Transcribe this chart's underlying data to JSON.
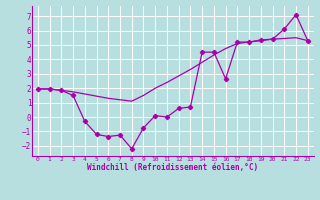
{
  "title": "",
  "xlabel": "Windchill (Refroidissement éolien,°C)",
  "ylabel": "",
  "xlim": [
    -0.5,
    23.5
  ],
  "ylim": [
    -2.7,
    7.7
  ],
  "yticks": [
    -2,
    -1,
    0,
    1,
    2,
    3,
    4,
    5,
    6,
    7
  ],
  "xticks": [
    0,
    1,
    2,
    3,
    4,
    5,
    6,
    7,
    8,
    9,
    10,
    11,
    12,
    13,
    14,
    15,
    16,
    17,
    18,
    19,
    20,
    21,
    22,
    23
  ],
  "bg_color": "#b8dfe0",
  "line_color": "#aa00aa",
  "grid_color": "#ffffff",
  "line1_x": [
    0,
    1,
    2,
    3,
    4,
    5,
    6,
    7,
    8,
    9,
    10,
    11,
    12,
    13,
    14,
    15,
    16,
    17,
    18,
    19,
    20,
    21,
    22,
    23
  ],
  "line1_y": [
    1.95,
    1.95,
    1.85,
    1.5,
    -0.3,
    -1.2,
    -1.35,
    -1.25,
    -2.2,
    -0.75,
    0.1,
    0.0,
    0.6,
    0.7,
    4.5,
    4.5,
    2.65,
    5.2,
    5.2,
    5.35,
    5.4,
    6.1,
    7.1,
    5.3
  ],
  "line2_x": [
    0,
    1,
    2,
    3,
    4,
    5,
    6,
    7,
    8,
    9,
    10,
    11,
    12,
    13,
    14,
    15,
    16,
    17,
    18,
    19,
    20,
    21,
    22,
    23
  ],
  "line2_y": [
    1.95,
    1.95,
    1.85,
    1.75,
    1.6,
    1.45,
    1.3,
    1.2,
    1.1,
    1.5,
    2.0,
    2.4,
    2.85,
    3.3,
    3.8,
    4.3,
    4.75,
    5.1,
    5.2,
    5.3,
    5.4,
    5.45,
    5.5,
    5.3
  ]
}
